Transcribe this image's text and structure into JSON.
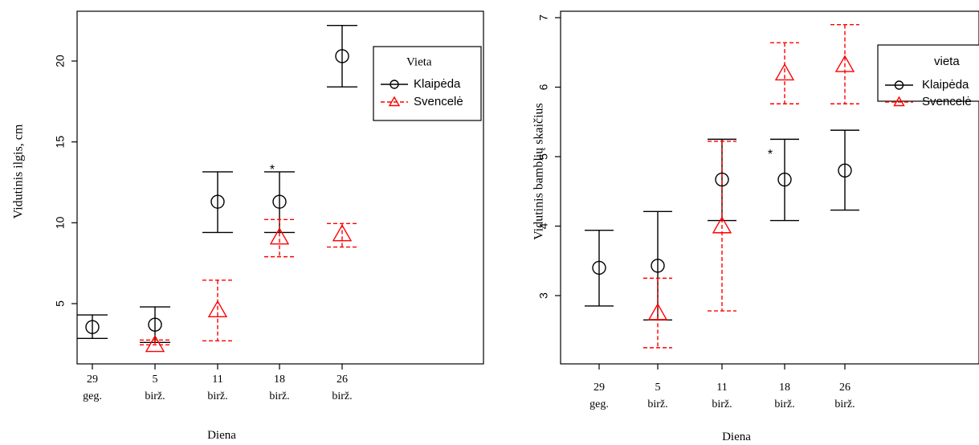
{
  "chart_data": [
    {
      "type": "scatter",
      "title": "",
      "xlabel": "Diena",
      "ylabel": "Vidutinis ilgis, cm",
      "categories": [
        [
          "29",
          "geg."
        ],
        [
          "5",
          "birž."
        ],
        [
          "11",
          "birž."
        ],
        [
          "18",
          "birž."
        ],
        [
          "26",
          "birž."
        ]
      ],
      "ylim": [
        1.2,
        23
      ],
      "yticks": [
        5,
        10,
        15,
        20
      ],
      "grid": false,
      "legend": {
        "title": "Vieta",
        "position": "top-right"
      },
      "annotations": [
        {
          "text": "*",
          "category_index": 3
        }
      ],
      "series": [
        {
          "name": "Klaipėda",
          "color": "#000000",
          "marker": "circle",
          "line": "solid",
          "values": [
            3.55,
            3.7,
            11.3,
            11.3,
            20.3
          ],
          "lower": [
            2.85,
            2.6,
            9.4,
            9.4,
            18.4
          ],
          "upper": [
            4.3,
            4.8,
            13.15,
            13.15,
            22.2
          ]
        },
        {
          "name": "Svencelė",
          "color": "#ff0000",
          "marker": "triangle",
          "line": "dashed",
          "values": [
            null,
            2.45,
            4.6,
            9.1,
            9.3
          ],
          "lower": [
            null,
            2.45,
            2.7,
            7.9,
            8.5
          ],
          "upper": [
            null,
            2.75,
            6.45,
            10.2,
            9.95
          ]
        }
      ]
    },
    {
      "type": "scatter",
      "title": "",
      "xlabel": "Diena",
      "ylabel": "Vidutinis bamblių skaičius",
      "categories": [
        [
          "29",
          "geg."
        ],
        [
          "5",
          "birž."
        ],
        [
          "11",
          "birž."
        ],
        [
          "18",
          "birž."
        ],
        [
          "26",
          "birž."
        ]
      ],
      "ylim": [
        2.04,
        7.1
      ],
      "yticks": [
        3,
        4,
        5,
        6,
        7
      ],
      "grid": false,
      "legend": {
        "title": "vieta",
        "position": "top-right"
      },
      "annotations": [
        {
          "text": "*",
          "category_index": 3
        }
      ],
      "series": [
        {
          "name": "Klaipėda",
          "color": "#000000",
          "marker": "circle",
          "line": "solid",
          "values": [
            3.4,
            3.43,
            4.67,
            4.67,
            4.8
          ],
          "lower": [
            2.85,
            2.65,
            4.08,
            4.08,
            4.23
          ],
          "upper": [
            3.94,
            4.21,
            5.25,
            5.25,
            5.38
          ]
        },
        {
          "name": "Svencelė",
          "color": "#ff0000",
          "marker": "triangle",
          "line": "dashed",
          "values": [
            null,
            2.75,
            4.0,
            6.2,
            6.32
          ],
          "lower": [
            null,
            2.25,
            2.78,
            5.76,
            5.76
          ],
          "upper": [
            null,
            3.25,
            5.22,
            6.64,
            6.9
          ]
        }
      ]
    }
  ]
}
